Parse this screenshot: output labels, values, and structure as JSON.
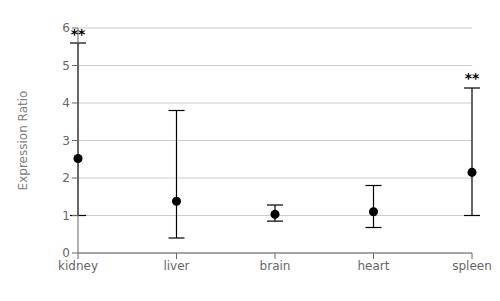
{
  "chart_data": {
    "type": "scatter",
    "categories": [
      "kidney",
      "liver",
      "brain",
      "heart",
      "spleen"
    ],
    "values": [
      2.52,
      1.38,
      1.03,
      1.1,
      2.15
    ],
    "error_lower": [
      1.52,
      0.98,
      0.18,
      0.42,
      1.15
    ],
    "error_upper": [
      3.08,
      2.42,
      0.25,
      0.7,
      2.25
    ],
    "annotations": [
      {
        "category": "kidney",
        "y": 5.58,
        "text": "**"
      },
      {
        "category": "spleen",
        "y": 4.4,
        "text": "**"
      }
    ],
    "ylabel": "Expression Ratio",
    "ylim": [
      0,
      6
    ],
    "yticks": [
      0,
      1,
      2,
      3,
      4,
      5,
      6
    ],
    "grid": true,
    "color": "#000000"
  }
}
